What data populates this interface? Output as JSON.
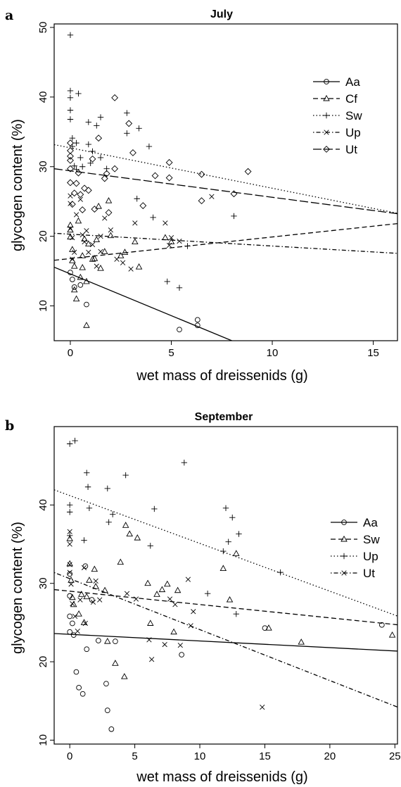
{
  "chart_data": [
    {
      "type": "scatter",
      "panel": "a",
      "title": "July",
      "xlabel": "wet mass of dreissenids (g)",
      "ylabel": "glycogen content (%)",
      "xlim": [
        -0.8,
        16.2
      ],
      "ylim": [
        5,
        50.5
      ],
      "xticks": [
        0,
        5,
        10,
        15
      ],
      "yticks": [
        10,
        20,
        30,
        40,
        50
      ],
      "legend_position": "top-right",
      "series": [
        {
          "name": "Aa",
          "marker": "circle",
          "dash": "solid",
          "line": [
            14.6,
            -1.2
          ],
          "points": [
            [
              0,
              14.8
            ],
            [
              0.2,
              12.7
            ],
            [
              0.8,
              10.2
            ],
            [
              5.4,
              6.6
            ],
            [
              6.3,
              8.0
            ],
            [
              6.3,
              7.2
            ],
            [
              0.5,
              13.0
            ],
            [
              0.1,
              13.8
            ]
          ]
        },
        {
          "name": "Cf",
          "marker": "triangle",
          "dash": "dashed",
          "line": [
            16.8,
            0.31
          ],
          "points": [
            [
              0,
              21.6
            ],
            [
              0,
              20.9
            ],
            [
              0,
              19.9
            ],
            [
              0.1,
              18.1
            ],
            [
              0.1,
              16.5
            ],
            [
              0.2,
              15.7
            ],
            [
              0.2,
              12.3
            ],
            [
              0.3,
              11.0
            ],
            [
              0.5,
              14.1
            ],
            [
              0.6,
              15.5
            ],
            [
              0.6,
              17.2
            ],
            [
              0.7,
              19.6
            ],
            [
              0.8,
              13.5
            ],
            [
              0.8,
              7.2
            ],
            [
              0.9,
              18.9
            ],
            [
              1.1,
              16.7
            ],
            [
              1.2,
              16.8
            ],
            [
              1.4,
              24.3
            ],
            [
              1.5,
              15.4
            ],
            [
              1.7,
              17.8
            ],
            [
              1.9,
              25.1
            ],
            [
              2.0,
              20.1
            ],
            [
              2.5,
              17.2
            ],
            [
              2.7,
              17.7
            ],
            [
              3.2,
              19.2
            ],
            [
              3.4,
              15.6
            ],
            [
              4.7,
              19.8
            ],
            [
              5.0,
              19.2
            ],
            [
              0.4,
              22.2
            ],
            [
              1.3,
              19.5
            ]
          ]
        },
        {
          "name": "Sw",
          "marker": "plus",
          "dash": "dotted",
          "line": [
            32.7,
            -0.58
          ],
          "points": [
            [
              0,
              48.9
            ],
            [
              0,
              40.9
            ],
            [
              0,
              39.9
            ],
            [
              0,
              38.1
            ],
            [
              0,
              36.8
            ],
            [
              0.1,
              34.1
            ],
            [
              0.1,
              32.9
            ],
            [
              0.2,
              30.1
            ],
            [
              0.3,
              29.6
            ],
            [
              0.3,
              33.4
            ],
            [
              0.4,
              40.5
            ],
            [
              0.5,
              31.3
            ],
            [
              0.6,
              30.0
            ],
            [
              0.9,
              36.4
            ],
            [
              0.9,
              33.2
            ],
            [
              1.0,
              30.5
            ],
            [
              1.1,
              32.2
            ],
            [
              1.3,
              35.9
            ],
            [
              1.5,
              37.1
            ],
            [
              1.5,
              31.3
            ],
            [
              1.8,
              29.7
            ],
            [
              2.8,
              34.8
            ],
            [
              2.8,
              37.7
            ],
            [
              3.3,
              25.4
            ],
            [
              3.4,
              35.5
            ],
            [
              3.9,
              32.9
            ],
            [
              4.1,
              22.7
            ],
            [
              4.8,
              13.5
            ],
            [
              5.4,
              12.6
            ],
            [
              5.8,
              18.6
            ],
            [
              8.1,
              22.9
            ]
          ]
        },
        {
          "name": "Up",
          "marker": "x",
          "dash": "dotdash",
          "line": [
            20.3,
            -0.17
          ],
          "points": [
            [
              0,
              25.8
            ],
            [
              0,
              24.7
            ],
            [
              0,
              21.1
            ],
            [
              0.1,
              19.8
            ],
            [
              0.1,
              16.7
            ],
            [
              0.3,
              23.1
            ],
            [
              0.5,
              25.3
            ],
            [
              0.6,
              20.2
            ],
            [
              0.7,
              19.2
            ],
            [
              0.8,
              20.8
            ],
            [
              0.9,
              17.7
            ],
            [
              1.1,
              18.8
            ],
            [
              1.3,
              15.7
            ],
            [
              1.5,
              17.8
            ],
            [
              1.5,
              20.0
            ],
            [
              1.7,
              22.6
            ],
            [
              2.0,
              20.9
            ],
            [
              2.3,
              16.7
            ],
            [
              2.6,
              16.2
            ],
            [
              3.0,
              15.3
            ],
            [
              3.2,
              21.9
            ],
            [
              4.7,
              21.9
            ],
            [
              4.9,
              18.7
            ],
            [
              5.4,
              19.3
            ],
            [
              7.0,
              25.7
            ],
            [
              5.0,
              19.8
            ],
            [
              0.2,
              17.7
            ]
          ]
        },
        {
          "name": "Ut",
          "marker": "diamond",
          "dash": "longdash",
          "line": [
            29.4,
            -0.38
          ],
          "points": [
            [
              0,
              33.4
            ],
            [
              0,
              32.3
            ],
            [
              0,
              31.5
            ],
            [
              0,
              30.9
            ],
            [
              0,
              29.7
            ],
            [
              0,
              27.7
            ],
            [
              0.1,
              24.6
            ],
            [
              0.2,
              26.2
            ],
            [
              0.3,
              27.6
            ],
            [
              0.4,
              29.1
            ],
            [
              0.5,
              26.0
            ],
            [
              0.6,
              23.8
            ],
            [
              0.7,
              26.9
            ],
            [
              0.9,
              26.6
            ],
            [
              1.1,
              31.1
            ],
            [
              1.2,
              23.9
            ],
            [
              1.4,
              34.1
            ],
            [
              1.7,
              28.3
            ],
            [
              1.8,
              29.0
            ],
            [
              1.9,
              23.4
            ],
            [
              2.2,
              39.9
            ],
            [
              2.2,
              29.7
            ],
            [
              2.9,
              36.2
            ],
            [
              3.1,
              32.0
            ],
            [
              3.6,
              24.4
            ],
            [
              4.2,
              28.7
            ],
            [
              4.9,
              30.6
            ],
            [
              4.9,
              28.4
            ],
            [
              6.5,
              28.9
            ],
            [
              6.5,
              25.1
            ],
            [
              8.1,
              26.1
            ],
            [
              8.8,
              29.3
            ]
          ]
        }
      ]
    },
    {
      "type": "scatter",
      "panel": "b",
      "title": "September",
      "xlabel": "wet mass of dreissenids (g)",
      "ylabel": "glycogen content (%)",
      "xlim": [
        -1.2,
        25.2
      ],
      "ylim": [
        9.5,
        50
      ],
      "xticks": [
        0,
        5,
        10,
        15,
        20,
        25
      ],
      "yticks": [
        10,
        20,
        30,
        40
      ],
      "legend_position": "top-right",
      "series": [
        {
          "name": "Aa",
          "marker": "circle",
          "dash": "solid",
          "line": [
            23.5,
            -0.085
          ],
          "points": [
            [
              0,
              31.2
            ],
            [
              0,
              28.4
            ],
            [
              0,
              25.8
            ],
            [
              0,
              23.8
            ],
            [
              0.2,
              24.9
            ],
            [
              0.3,
              23.4
            ],
            [
              0.5,
              18.7
            ],
            [
              0.7,
              16.7
            ],
            [
              1.0,
              15.9
            ],
            [
              1.3,
              21.6
            ],
            [
              1.7,
              27.9
            ],
            [
              2.2,
              22.7
            ],
            [
              2.8,
              17.2
            ],
            [
              2.9,
              13.8
            ],
            [
              3.2,
              11.4
            ],
            [
              3.5,
              22.6
            ],
            [
              8.6,
              20.9
            ],
            [
              15.0,
              24.3
            ],
            [
              24.0,
              24.7
            ],
            [
              1.2,
              32.2
            ]
          ]
        },
        {
          "name": "Sw",
          "marker": "triangle",
          "dash": "dashed",
          "line": [
            29.0,
            -0.17
          ],
          "points": [
            [
              0,
              35.7
            ],
            [
              0,
              32.5
            ],
            [
              0.1,
              30.4
            ],
            [
              0.2,
              28.2
            ],
            [
              0.3,
              27.3
            ],
            [
              0.7,
              26.1
            ],
            [
              0.9,
              28.6
            ],
            [
              1.1,
              25.0
            ],
            [
              1.3,
              28.3
            ],
            [
              1.5,
              30.4
            ],
            [
              1.9,
              31.8
            ],
            [
              2.0,
              29.6
            ],
            [
              2.7,
              29.1
            ],
            [
              2.9,
              22.6
            ],
            [
              3.5,
              19.8
            ],
            [
              3.9,
              32.7
            ],
            [
              4.2,
              18.1
            ],
            [
              4.3,
              37.4
            ],
            [
              4.6,
              36.3
            ],
            [
              5.2,
              35.8
            ],
            [
              6.0,
              30.0
            ],
            [
              6.2,
              24.9
            ],
            [
              6.7,
              28.6
            ],
            [
              7.1,
              29.2
            ],
            [
              7.5,
              29.9
            ],
            [
              8.0,
              23.8
            ],
            [
              8.3,
              29.1
            ],
            [
              11.8,
              31.9
            ],
            [
              12.3,
              27.9
            ],
            [
              12.8,
              33.8
            ],
            [
              15.3,
              24.3
            ],
            [
              17.8,
              22.5
            ],
            [
              24.8,
              23.4
            ]
          ]
        },
        {
          "name": "Up",
          "marker": "plus",
          "dash": "dotted",
          "line": [
            41.2,
            -0.61
          ],
          "points": [
            [
              0,
              47.8
            ],
            [
              0,
              40.0
            ],
            [
              0,
              39.1
            ],
            [
              0,
              36.1
            ],
            [
              0.4,
              48.2
            ],
            [
              1.1,
              35.5
            ],
            [
              1.3,
              44.1
            ],
            [
              1.4,
              42.3
            ],
            [
              1.5,
              39.6
            ],
            [
              2.9,
              42.1
            ],
            [
              3.0,
              37.8
            ],
            [
              3.3,
              38.8
            ],
            [
              4.3,
              43.8
            ],
            [
              6.2,
              34.8
            ],
            [
              6.5,
              39.5
            ],
            [
              8.8,
              45.4
            ],
            [
              11.8,
              34.1
            ],
            [
              12.0,
              39.6
            ],
            [
              12.2,
              35.3
            ],
            [
              12.5,
              38.4
            ],
            [
              12.8,
              26.1
            ],
            [
              13.0,
              36.3
            ],
            [
              16.2,
              31.4
            ],
            [
              10.6,
              28.7
            ]
          ]
        },
        {
          "name": "Ut",
          "marker": "x",
          "dash": "dotdash",
          "line": [
            30.6,
            -0.65
          ],
          "points": [
            [
              0,
              36.6
            ],
            [
              0,
              35.0
            ],
            [
              0,
              32.4
            ],
            [
              0,
              31.4
            ],
            [
              0.1,
              29.9
            ],
            [
              0.2,
              27.4
            ],
            [
              0.4,
              25.8
            ],
            [
              0.6,
              23.9
            ],
            [
              0.8,
              27.9
            ],
            [
              1.1,
              32.0
            ],
            [
              1.2,
              24.9
            ],
            [
              1.8,
              27.6
            ],
            [
              2.0,
              30.3
            ],
            [
              2.3,
              27.9
            ],
            [
              4.4,
              28.7
            ],
            [
              5.1,
              28.0
            ],
            [
              6.1,
              22.8
            ],
            [
              6.3,
              20.3
            ],
            [
              7.3,
              22.2
            ],
            [
              7.7,
              28.0
            ],
            [
              8.1,
              27.3
            ],
            [
              8.5,
              22.1
            ],
            [
              9.3,
              24.6
            ],
            [
              9.5,
              26.4
            ],
            [
              9.1,
              30.5
            ],
            [
              14.8,
              14.2
            ]
          ]
        }
      ]
    }
  ]
}
